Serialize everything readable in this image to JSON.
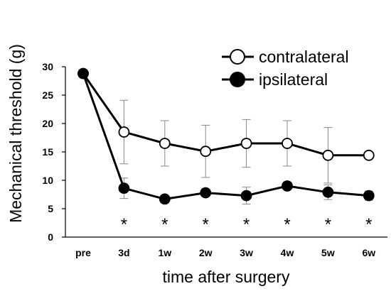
{
  "chart_data": {
    "type": "line",
    "xlabel": "time after surgery",
    "ylabel": "Mechanical threshold (g)",
    "ylim": [
      0,
      30
    ],
    "yticks": [
      0,
      5,
      10,
      15,
      20,
      25,
      30
    ],
    "categories": [
      "pre",
      "3d",
      "1w",
      "2w",
      "3w",
      "4w",
      "5w",
      "6w"
    ],
    "legend_position": "top-right",
    "grid": false,
    "series": [
      {
        "name": "contralateral",
        "marker": "open-circle",
        "color": "#000000",
        "values": [
          28.8,
          18.5,
          16.5,
          15.1,
          16.5,
          16.5,
          14.4,
          14.4
        ],
        "error": [
          0,
          5.6,
          4.0,
          4.6,
          4.2,
          4.0,
          4.9,
          0
        ]
      },
      {
        "name": "ipsilateral",
        "marker": "filled-circle",
        "color": "#000000",
        "values": [
          28.8,
          8.6,
          6.7,
          7.8,
          7.3,
          9.0,
          7.9,
          7.3
        ],
        "error": [
          0,
          1.8,
          0.6,
          0,
          1.5,
          0,
          1.3,
          0.8
        ]
      }
    ],
    "annotations": {
      "significance_symbol": "*",
      "significance_categories": [
        "3d",
        "1w",
        "2w",
        "3w",
        "4w",
        "5w",
        "6w"
      ]
    }
  }
}
